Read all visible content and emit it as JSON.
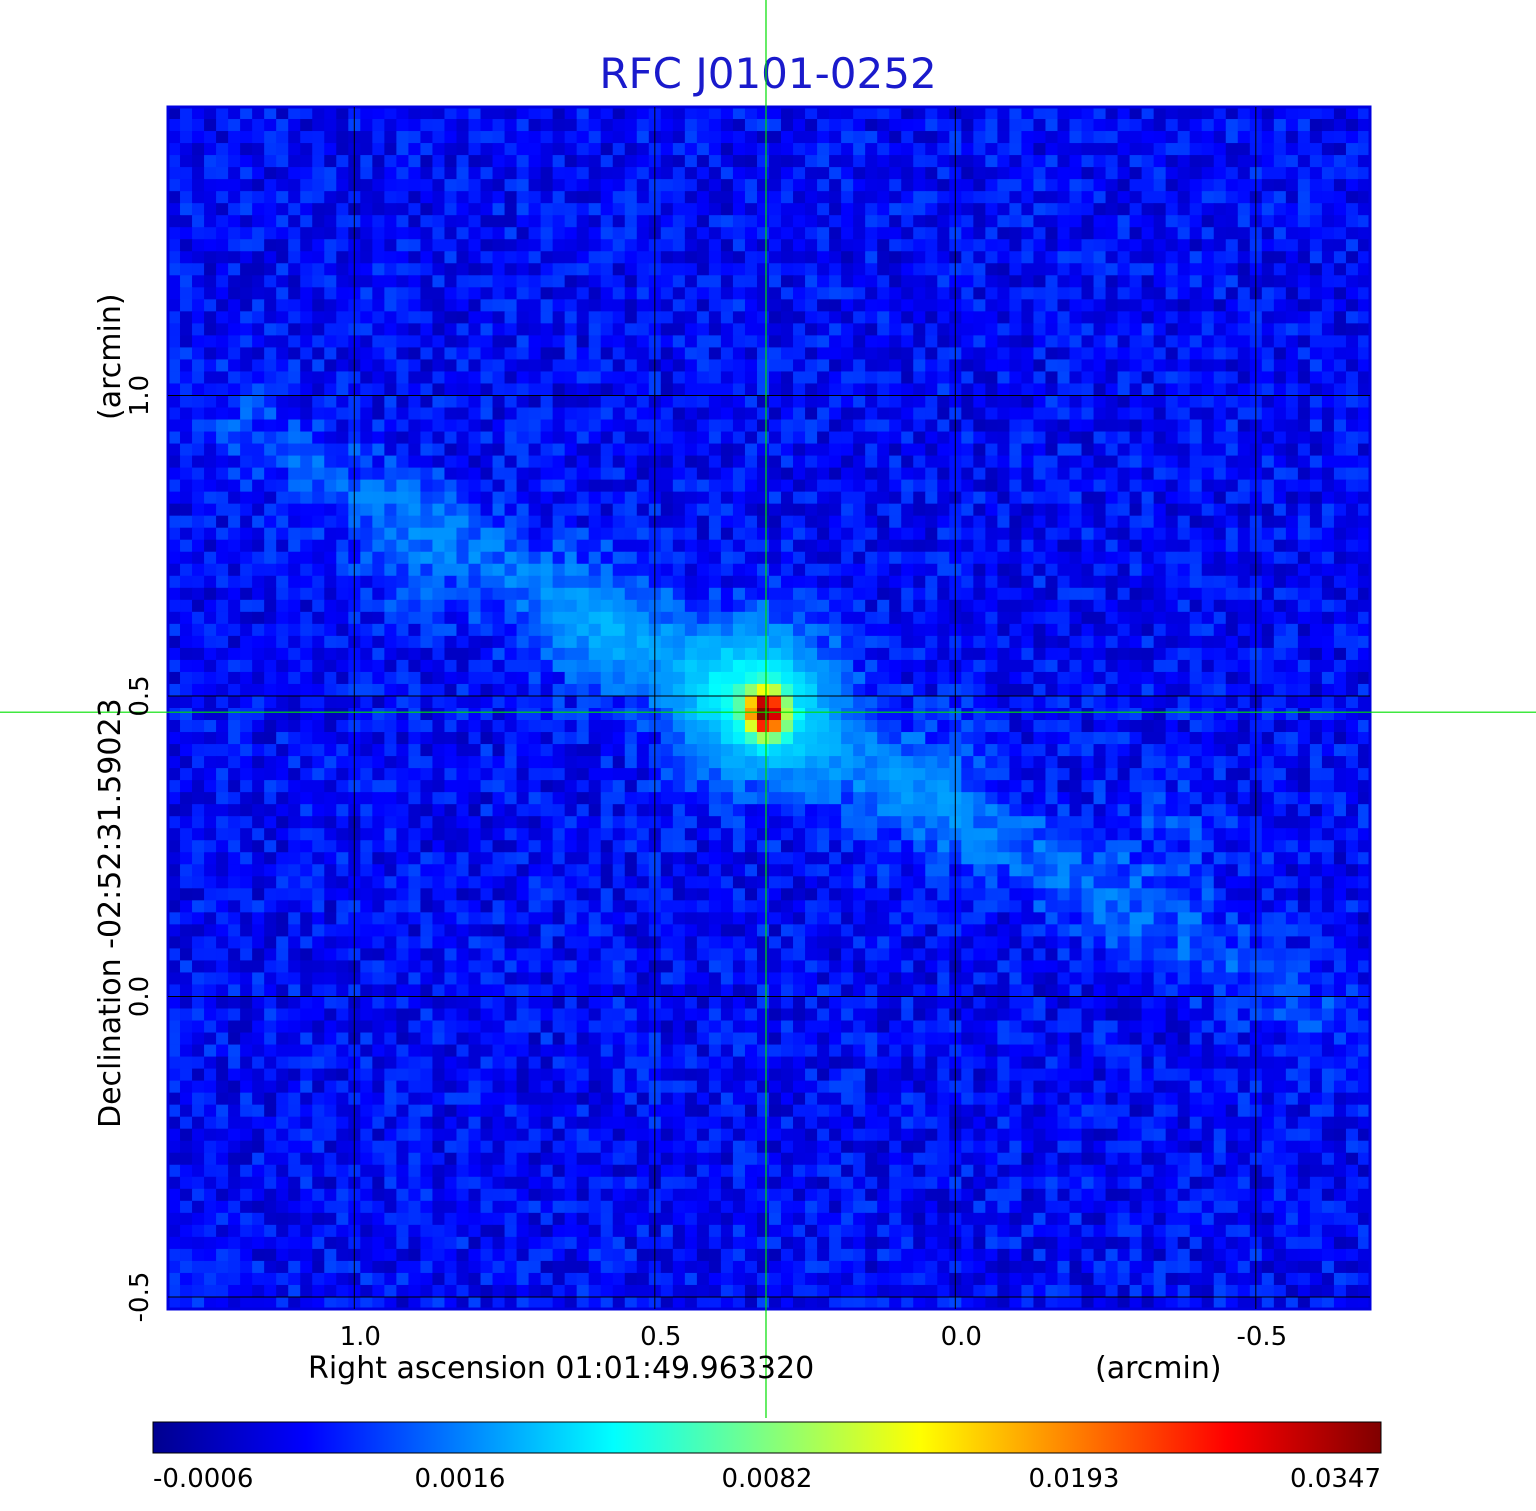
{
  "chart_data": {
    "type": "heatmap",
    "title": "RFC J0101-0252",
    "xlabel": "Right ascension  01:01:49.963320",
    "xunit": "(arcmin)",
    "ylabel": "Declination  -02:52:31.59023",
    "yunit": "(arcmin)",
    "x_ticks": [
      1.0,
      0.5,
      0.0,
      -0.5
    ],
    "x_tick_labels": [
      "1.0",
      "0.5",
      "0.0",
      "-0.5"
    ],
    "y_ticks": [
      1.0,
      0.5,
      0.0,
      -0.5
    ],
    "y_tick_labels": [
      "1.0",
      "0.5",
      "0.0",
      "-0.5"
    ],
    "xlim": [
      1.31,
      -0.69
    ],
    "ylim": [
      -0.52,
      1.48
    ],
    "grid": true,
    "crosshair": {
      "x": 0.315,
      "y": 0.473,
      "color": "#00e000"
    },
    "colormap": "jet",
    "colorbar_ticks": [
      "-0.0006",
      "0.0016",
      "0.0082",
      "0.0193",
      "0.0347"
    ],
    "colorbar_range": [
      -0.0006,
      0.0347
    ],
    "peak": {
      "x": 0.315,
      "y": 0.473,
      "value": 0.0347
    },
    "background_level": 0.0005,
    "extended_emission": [
      {
        "x": 0.33,
        "y": 0.49,
        "value": 0.009
      },
      {
        "x": 0.58,
        "y": 0.62,
        "value": 0.0025
      },
      {
        "x": 0.9,
        "y": 0.72,
        "value": 0.0015
      },
      {
        "x": 0.05,
        "y": 0.35,
        "value": 0.0016
      },
      {
        "x": -0.35,
        "y": 0.25,
        "value": 0.0014
      }
    ]
  }
}
